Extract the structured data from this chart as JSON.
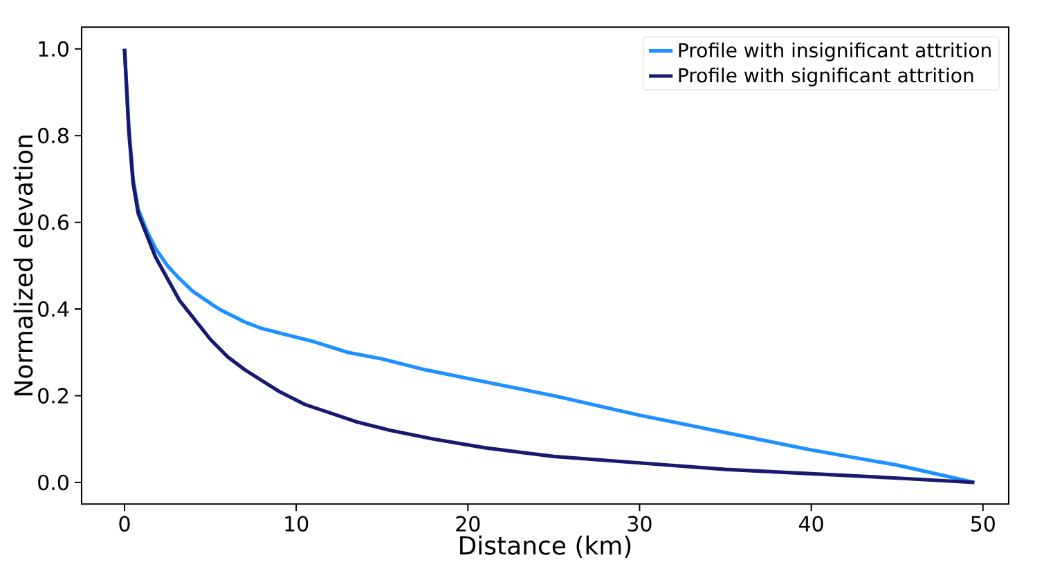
{
  "chart_data": {
    "type": "line",
    "xlabel": "Distance (km)",
    "ylabel": "Normalized elevation",
    "xlim": [
      -2.5,
      51.5
    ],
    "ylim": [
      -0.05,
      1.05
    ],
    "xticks": [
      0,
      10,
      20,
      30,
      40,
      50
    ],
    "yticks": [
      {
        "value": 0,
        "label": "0.0"
      },
      {
        "value": 0.2,
        "label": "0.2"
      },
      {
        "value": 0.4,
        "label": "0.4"
      },
      {
        "value": 0.6,
        "label": "0.6"
      },
      {
        "value": 0.8,
        "label": "0.8"
      },
      {
        "value": 1,
        "label": "1.0"
      }
    ],
    "legend": "top right",
    "marker": "none",
    "line_style": "solid",
    "series": [
      {
        "name": "Profile with insignificant attrition",
        "color": "#1e90ff",
        "x": [
          0,
          0.25,
          0.5,
          0.8,
          1.3,
          1.8,
          2.5,
          3.2,
          4,
          5.5,
          7,
          8,
          9.5,
          11,
          13,
          15,
          17.5,
          20,
          25,
          30,
          35,
          40,
          45,
          49.5
        ],
        "values": [
          1.0,
          0.82,
          0.7,
          0.63,
          0.58,
          0.54,
          0.5,
          0.47,
          0.44,
          0.4,
          0.37,
          0.355,
          0.34,
          0.325,
          0.3,
          0.285,
          0.26,
          0.24,
          0.2,
          0.155,
          0.115,
          0.075,
          0.04,
          0.0
        ]
      },
      {
        "name": "Profile with significant attrition",
        "color": "#191970",
        "x": [
          0,
          0.25,
          0.5,
          0.8,
          1.3,
          1.8,
          2.5,
          3.2,
          4,
          5,
          6,
          7,
          8,
          9,
          10.5,
          12,
          13.5,
          15.5,
          18,
          21,
          25,
          30,
          35,
          40,
          45,
          49.5
        ],
        "values": [
          1.0,
          0.81,
          0.69,
          0.62,
          0.57,
          0.52,
          0.47,
          0.42,
          0.38,
          0.33,
          0.29,
          0.26,
          0.235,
          0.21,
          0.18,
          0.16,
          0.14,
          0.12,
          0.1,
          0.08,
          0.06,
          0.045,
          0.03,
          0.02,
          0.01,
          0.0
        ]
      }
    ]
  }
}
